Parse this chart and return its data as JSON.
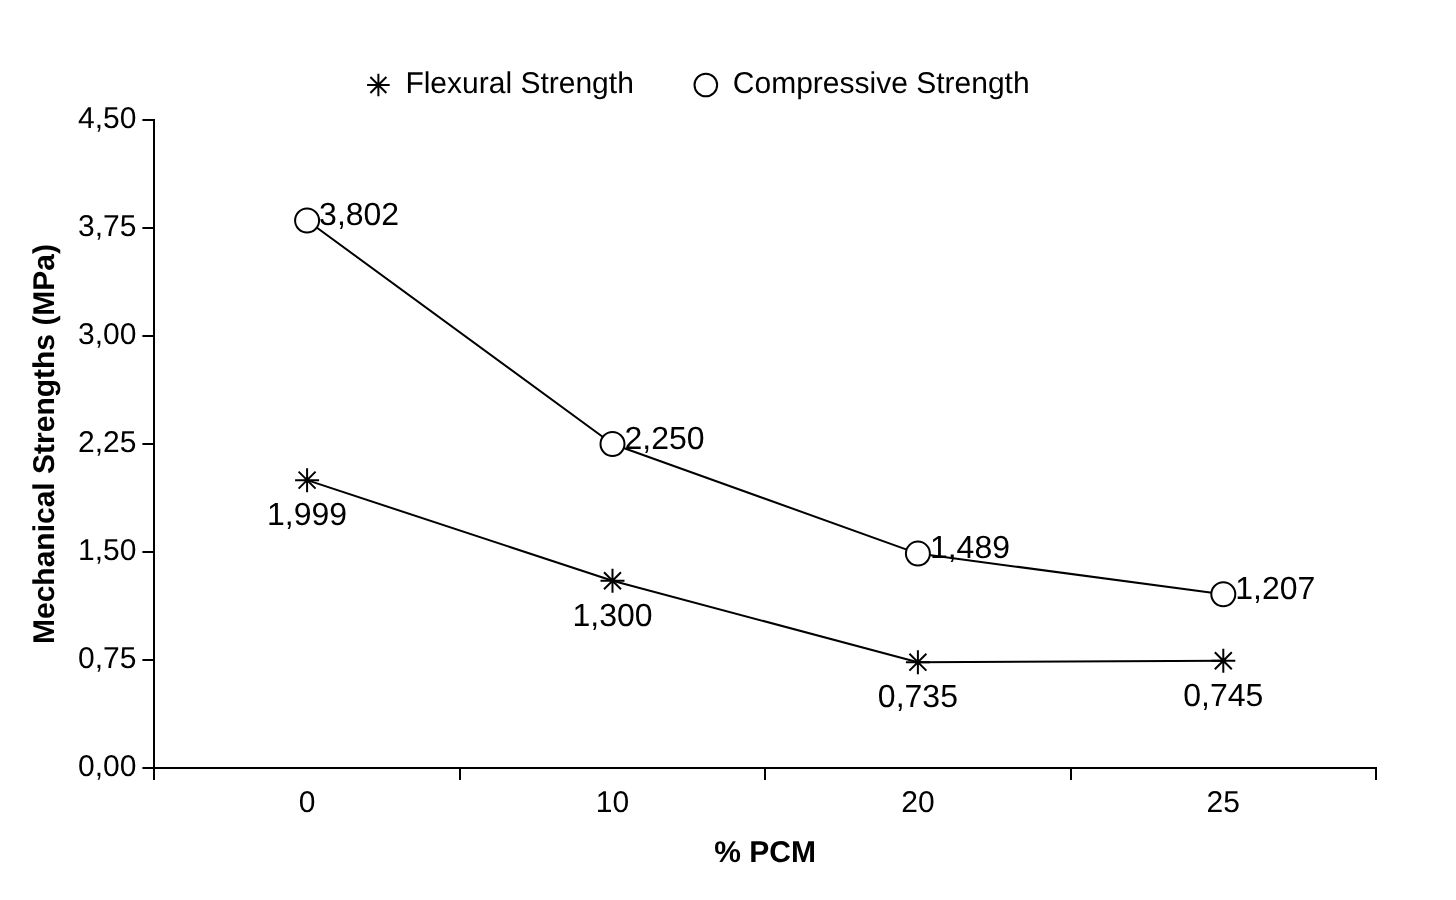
{
  "chart_data": {
    "type": "line",
    "xlabel": "% PCM",
    "ylabel": "Mechanical Strengths (MPa)",
    "categories": [
      "0",
      "10",
      "20",
      "25"
    ],
    "series": [
      {
        "name": "Flexural Strength",
        "color": "#000000",
        "marker": "cross",
        "values": [
          1.999,
          1.3,
          0.735,
          0.745
        ],
        "value_labels": [
          "1,999",
          "1,300",
          "0,735",
          "0,745"
        ]
      },
      {
        "name": "Compressive Strength",
        "color": "#000000",
        "marker": "circle",
        "values": [
          3.802,
          2.25,
          1.489,
          1.207
        ],
        "value_labels": [
          "3,802",
          "2,250",
          "1,489",
          "1,207"
        ]
      }
    ],
    "ylim": [
      0,
      4.5
    ],
    "yticks": [
      {
        "value": 0,
        "label": "0,00"
      },
      {
        "value": 0.75,
        "label": "0,75"
      },
      {
        "value": 1.5,
        "label": "1,50"
      },
      {
        "value": 2.25,
        "label": "2,25"
      },
      {
        "value": 3,
        "label": "3,00"
      },
      {
        "value": 3.75,
        "label": "3,75"
      },
      {
        "value": 4.5,
        "label": "4,50"
      }
    ],
    "grid": false,
    "legend": "top",
    "line_style": "solid"
  }
}
